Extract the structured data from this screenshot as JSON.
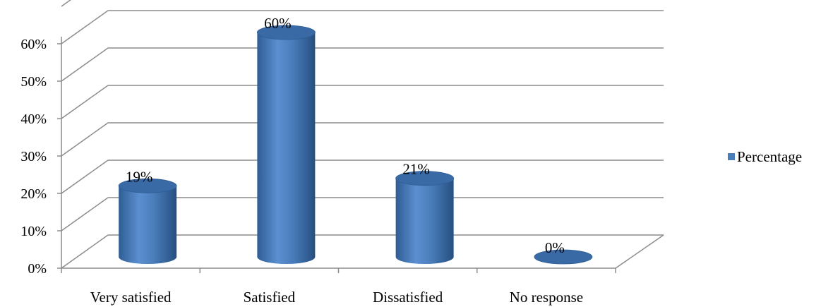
{
  "chart_data": {
    "type": "bar",
    "style": "3d-cylinder",
    "categories": [
      "Very satisfied",
      "Satisfied",
      "Dissatisfied",
      "No response"
    ],
    "series": [
      {
        "name": "Percentage",
        "values": [
          19,
          60,
          21,
          0
        ],
        "color": "#4a7ebb"
      }
    ],
    "data_labels": [
      "19%",
      "60%",
      "21%",
      "0%"
    ],
    "yticks": [
      "0%",
      "10%",
      "20%",
      "30%",
      "40%",
      "50%",
      "60%"
    ],
    "ylim": [
      0,
      70
    ],
    "grid": true,
    "legend": {
      "position": "right"
    }
  }
}
